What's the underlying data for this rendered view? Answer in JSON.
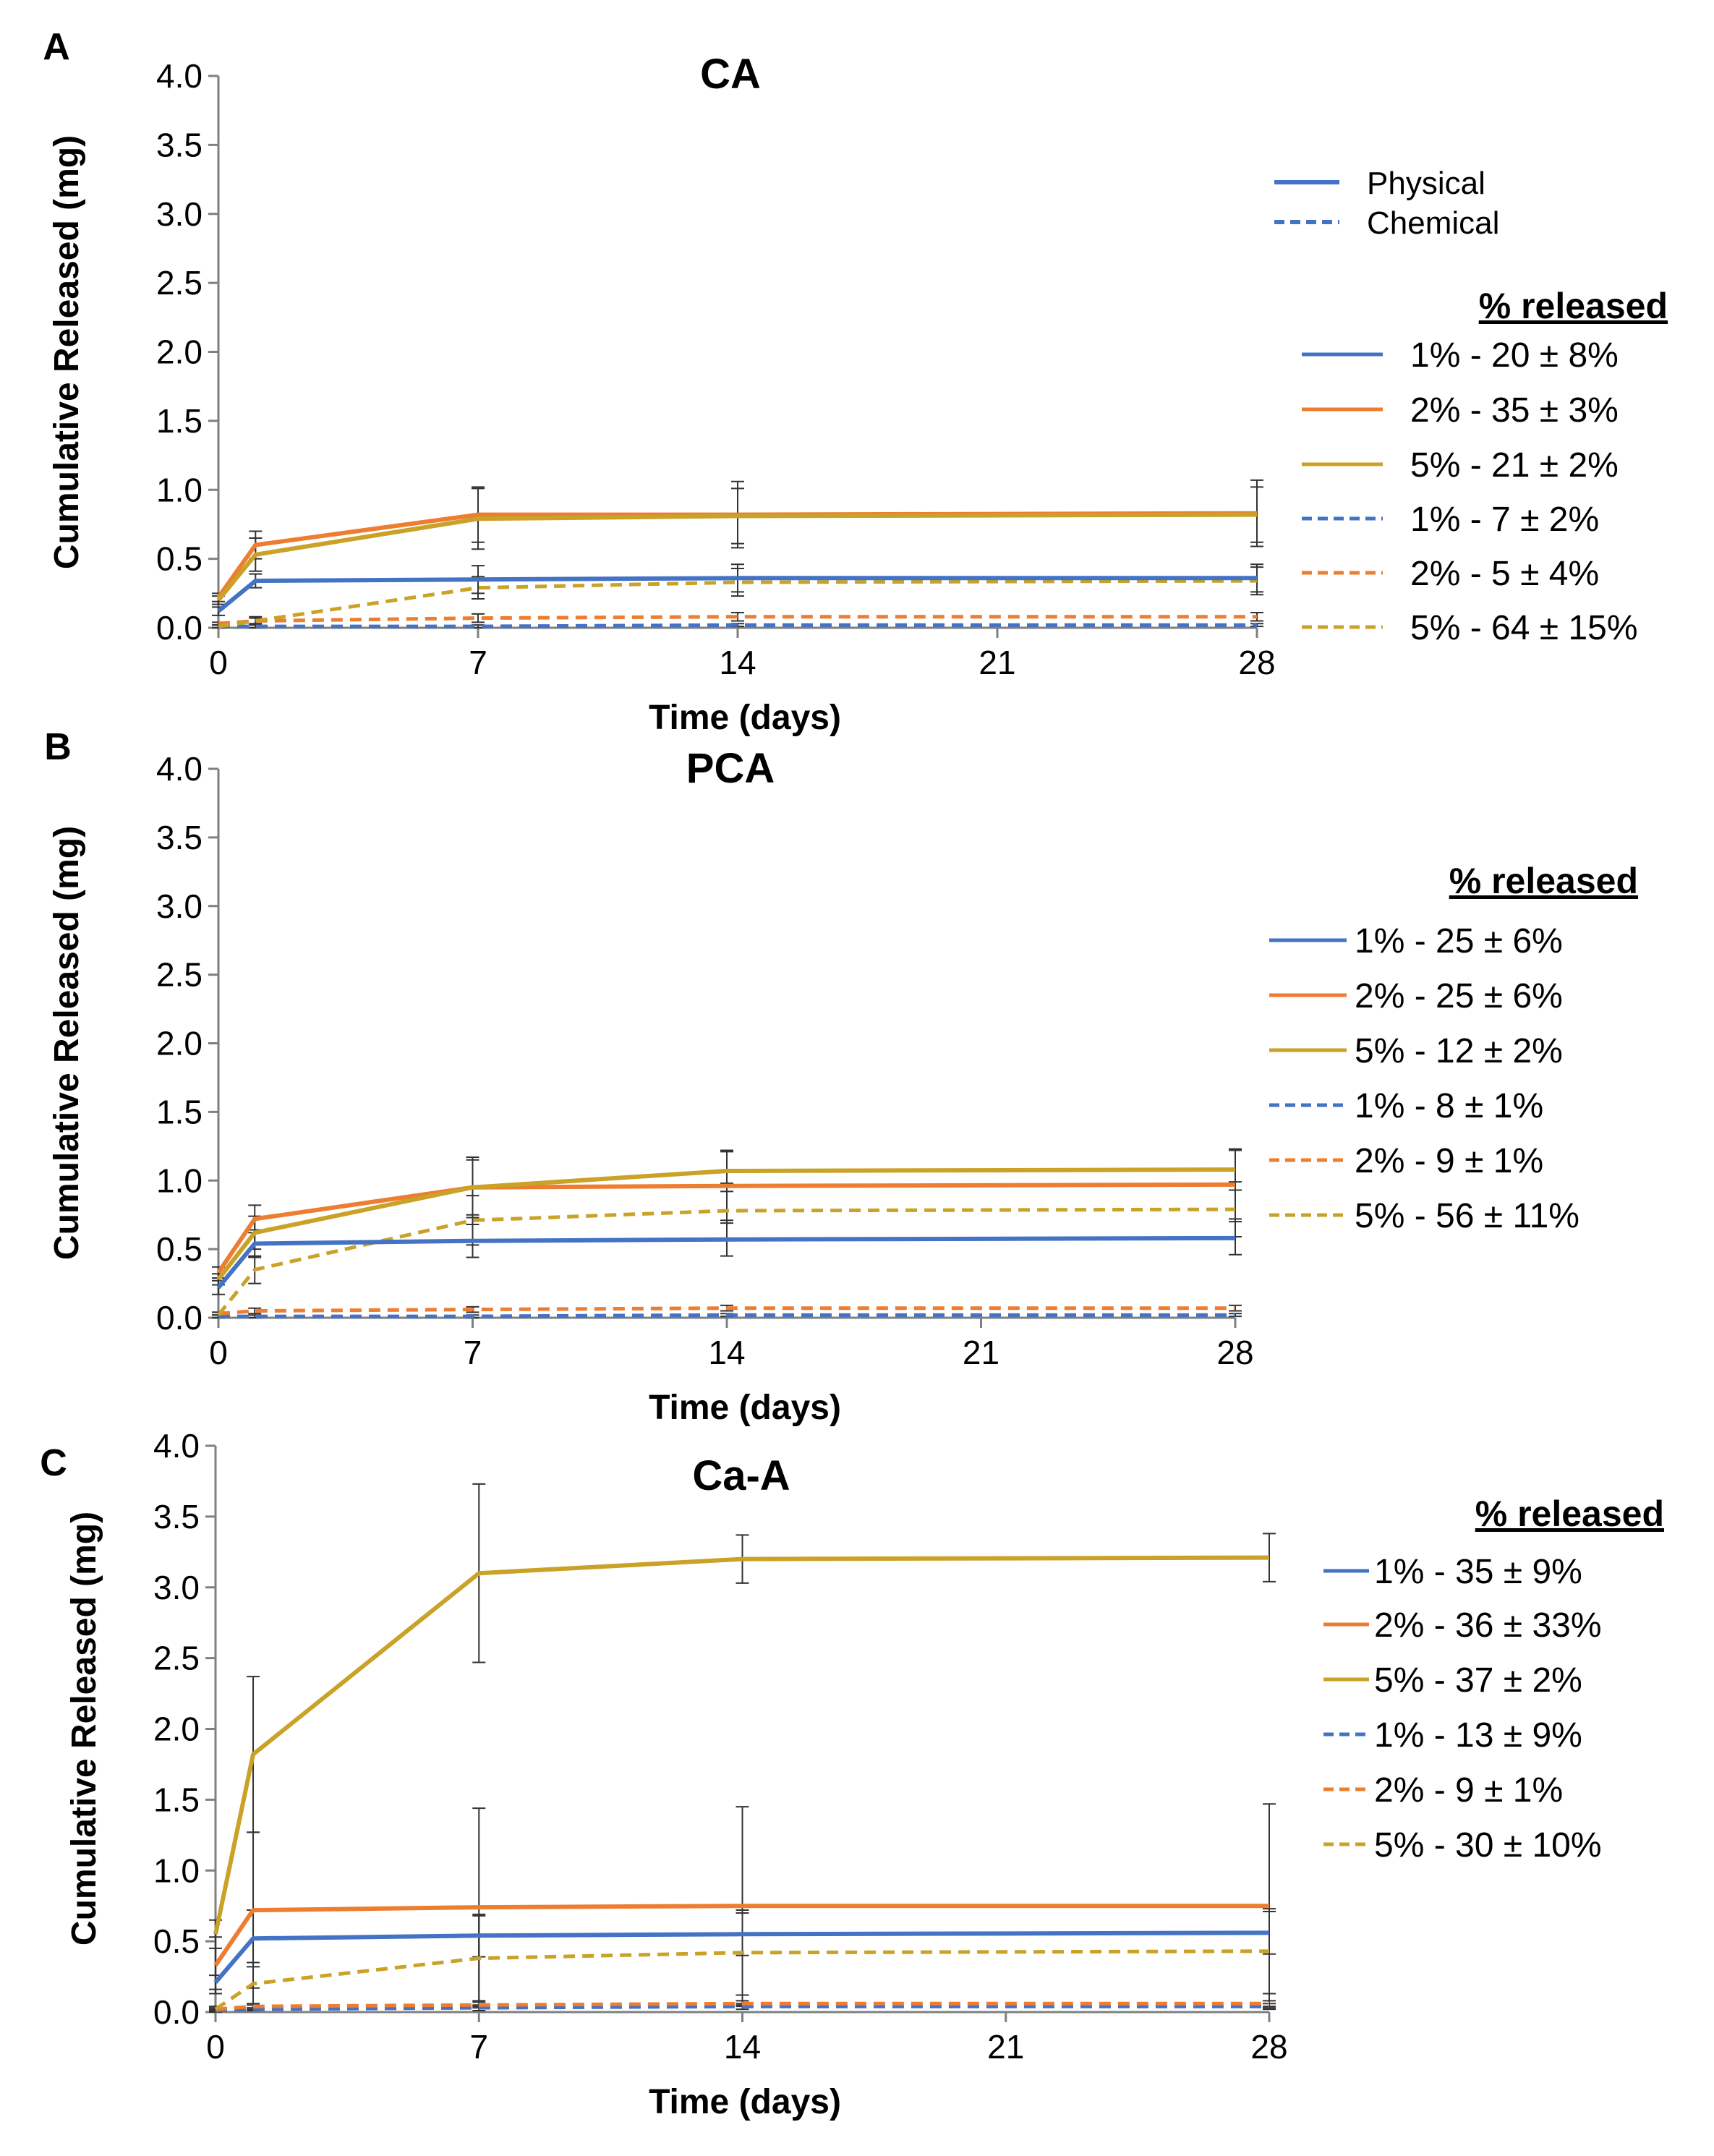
{
  "colors": {
    "blue": "#4472C4",
    "orange": "#ED7D31",
    "gold": "#C9A227",
    "axis": "#7f7f7f",
    "error": "#333333"
  },
  "chart_data": [
    {
      "panel": "A",
      "type": "line",
      "title": "CA",
      "xlabel": "Time (days)",
      "ylabel": "Cumulative Released (mg)",
      "xlim": [
        0,
        28
      ],
      "ylim": [
        0,
        4
      ],
      "xticks": [
        "0",
        "7",
        "14",
        "21",
        "28"
      ],
      "yticks": [
        "0.0",
        "0.5",
        "1.0",
        "1.5",
        "2.0",
        "2.5",
        "3.0",
        "3.5",
        "4.0"
      ],
      "x": [
        0,
        1,
        7,
        14,
        28
      ],
      "type_legend": [
        {
          "label": "Physical",
          "style": "solid"
        },
        {
          "label": "Chemical",
          "style": "dashed"
        }
      ],
      "legend_title": "% released",
      "series": [
        {
          "name": "1% - 20 ± 8%",
          "color": "blue",
          "style": "solid",
          "values": [
            0.12,
            0.34,
            0.35,
            0.36,
            0.36
          ],
          "errors": [
            0.03,
            0.05,
            0.1,
            0.1,
            0.1
          ]
        },
        {
          "name": "2% - 35 ± 3%",
          "color": "orange",
          "style": "solid",
          "values": [
            0.22,
            0.6,
            0.82,
            0.82,
            0.83
          ],
          "errors": [
            0.03,
            0.1,
            0.2,
            0.24,
            0.24
          ]
        },
        {
          "name": "5% - 21 ± 2%",
          "color": "gold",
          "style": "solid",
          "values": [
            0.2,
            0.53,
            0.79,
            0.81,
            0.82
          ],
          "errors": [
            0.03,
            0.12,
            0.22,
            0.2,
            0.2
          ]
        },
        {
          "name": "1% - 7 ± 2%",
          "color": "blue",
          "style": "dashed",
          "values": [
            0.01,
            0.01,
            0.01,
            0.02,
            0.02
          ],
          "errors": [
            0.01,
            0.01,
            0.01,
            0.01,
            0.01
          ]
        },
        {
          "name": "2% - 5 ± 4%",
          "color": "orange",
          "style": "dashed",
          "values": [
            0.03,
            0.05,
            0.07,
            0.08,
            0.08
          ],
          "errors": [
            0.01,
            0.02,
            0.03,
            0.03,
            0.03
          ]
        },
        {
          "name": "5% - 64 ± 15%",
          "color": "gold",
          "style": "dashed",
          "values": [
            0.01,
            0.05,
            0.29,
            0.33,
            0.34
          ],
          "errors": [
            0.01,
            0.03,
            0.08,
            0.1,
            0.1
          ]
        }
      ]
    },
    {
      "panel": "B",
      "type": "line",
      "title": "PCA",
      "xlabel": "Time (days)",
      "ylabel": "Cumulative Released (mg)",
      "xlim": [
        0,
        28
      ],
      "ylim": [
        0,
        4
      ],
      "xticks": [
        "0",
        "7",
        "14",
        "21",
        "28"
      ],
      "yticks": [
        "0.0",
        "0.5",
        "1.0",
        "1.5",
        "2.0",
        "2.5",
        "3.0",
        "3.5",
        "4.0"
      ],
      "x": [
        0,
        1,
        7,
        14,
        28
      ],
      "legend_title": "% released",
      "series": [
        {
          "name": "1% - 25 ± 6%",
          "color": "blue",
          "style": "solid",
          "values": [
            0.22,
            0.54,
            0.56,
            0.57,
            0.58
          ],
          "errors": [
            0.05,
            0.1,
            0.12,
            0.12,
            0.12
          ]
        },
        {
          "name": "2% - 25 ± 6%",
          "color": "orange",
          "style": "solid",
          "values": [
            0.33,
            0.72,
            0.95,
            0.96,
            0.97
          ],
          "errors": [
            0.04,
            0.1,
            0.2,
            0.25,
            0.25
          ]
        },
        {
          "name": "5% - 12 ± 2%",
          "color": "gold",
          "style": "solid",
          "values": [
            0.28,
            0.62,
            0.95,
            1.07,
            1.08
          ],
          "errors": [
            0.04,
            0.12,
            0.22,
            0.15,
            0.15
          ]
        },
        {
          "name": "1% - 8 ± 1%",
          "color": "blue",
          "style": "dashed",
          "values": [
            0.01,
            0.01,
            0.01,
            0.02,
            0.02
          ],
          "errors": [
            0.01,
            0.01,
            0.01,
            0.01,
            0.01
          ]
        },
        {
          "name": "2% - 9 ± 1%",
          "color": "orange",
          "style": "dashed",
          "values": [
            0.03,
            0.05,
            0.06,
            0.07,
            0.07
          ],
          "errors": [
            0.01,
            0.02,
            0.02,
            0.02,
            0.02
          ]
        },
        {
          "name": "5% - 56 ± 11%",
          "color": "gold",
          "style": "dashed",
          "values": [
            0.02,
            0.35,
            0.71,
            0.78,
            0.79
          ],
          "errors": [
            0.02,
            0.1,
            0.18,
            0.2,
            0.2
          ]
        }
      ]
    },
    {
      "panel": "C",
      "type": "line",
      "title": "Ca-A",
      "xlabel": "Time (days)",
      "ylabel": "Cumulative Released (mg)",
      "xlim": [
        0,
        28
      ],
      "ylim": [
        0,
        4
      ],
      "xticks": [
        "0",
        "7",
        "14",
        "21",
        "28"
      ],
      "yticks": [
        "0.0",
        "0.5",
        "1.0",
        "1.5",
        "2.0",
        "2.5",
        "3.0",
        "3.5",
        "4.0"
      ],
      "x": [
        0,
        1,
        7,
        14,
        28
      ],
      "legend_title": "% released",
      "series": [
        {
          "name": "1% - 35 ± 9%",
          "color": "blue",
          "style": "solid",
          "values": [
            0.21,
            0.52,
            0.54,
            0.55,
            0.56
          ],
          "errors": [
            0.05,
            0.2,
            0.15,
            0.15,
            0.15
          ]
        },
        {
          "name": "2% - 36 ± 33%",
          "color": "orange",
          "style": "solid",
          "values": [
            0.33,
            0.72,
            0.74,
            0.75,
            0.75
          ],
          "errors": [
            0.2,
            0.55,
            0.7,
            0.7,
            0.72
          ]
        },
        {
          "name": "5% - 37 ± 2%",
          "color": "gold",
          "style": "solid",
          "values": [
            0.55,
            1.82,
            3.1,
            3.2,
            3.21
          ],
          "errors": [
            0.1,
            0.55,
            0.63,
            0.17,
            0.17
          ]
        },
        {
          "name": "1% - 13 ± 9%",
          "color": "blue",
          "style": "dashed",
          "values": [
            0.01,
            0.02,
            0.03,
            0.04,
            0.04
          ],
          "errors": [
            0.01,
            0.01,
            0.02,
            0.02,
            0.02
          ]
        },
        {
          "name": "2% - 9 ± 1%",
          "color": "orange",
          "style": "dashed",
          "values": [
            0.02,
            0.04,
            0.05,
            0.06,
            0.06
          ],
          "errors": [
            0.01,
            0.02,
            0.02,
            0.02,
            0.02
          ]
        },
        {
          "name": "5% - 30 ± 10%",
          "color": "gold",
          "style": "dashed",
          "values": [
            0.02,
            0.2,
            0.38,
            0.42,
            0.43
          ],
          "errors": [
            0.02,
            0.15,
            0.3,
            0.3,
            0.3
          ]
        }
      ]
    }
  ]
}
